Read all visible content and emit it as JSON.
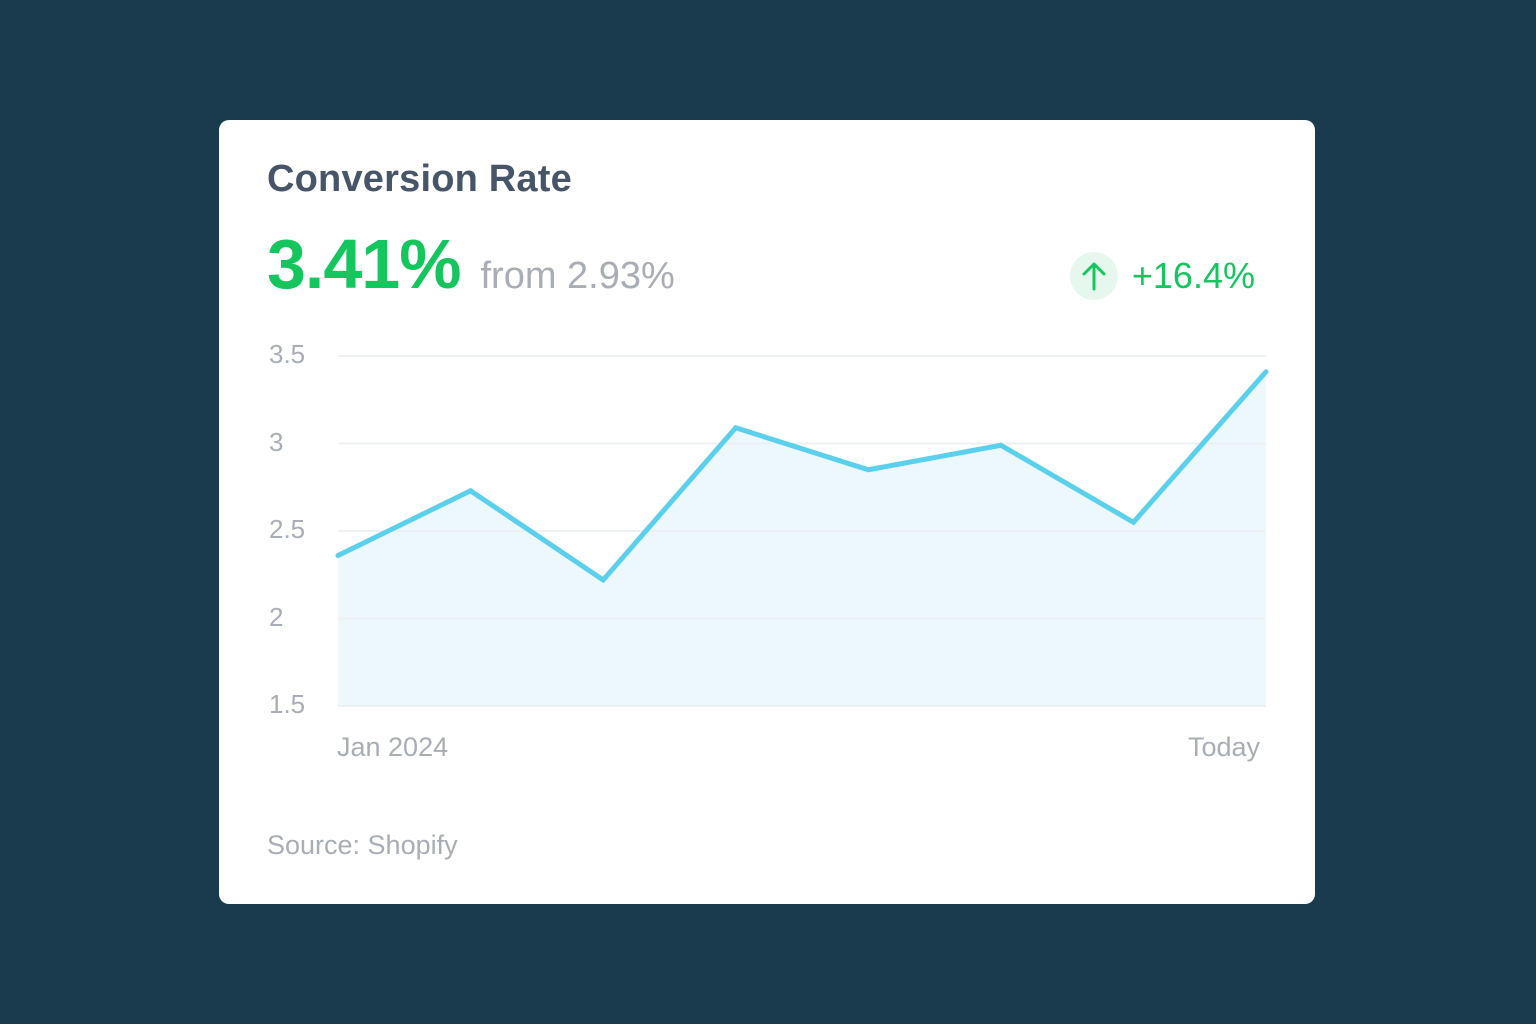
{
  "card": {
    "title": "Conversion Rate",
    "value": "3.41%",
    "from_text": "from 2.93%",
    "change": {
      "icon": "arrow-up-icon",
      "value": "+16.4%",
      "direction": "up"
    },
    "source": "Source: Shopify"
  },
  "colors": {
    "background": "#1a3a4d",
    "card": "#ffffff",
    "title": "#475569",
    "positive": "#15c55e",
    "positive_bg": "#e6f8ee",
    "muted": "#a8adb6",
    "line": "#5bd0ec",
    "area": "#ecf8fb",
    "grid": "#eef1f4"
  },
  "chart_data": {
    "type": "area",
    "title": "Conversion Rate",
    "xlabel": "",
    "ylabel": "",
    "x_tick_labels": [
      "Jan 2024",
      "Today"
    ],
    "y_ticks": [
      "3.5",
      "3",
      "2.5",
      "2",
      "1.5"
    ],
    "ylim": [
      1.5,
      3.5
    ],
    "grid": true,
    "legend": null,
    "series": [
      {
        "name": "Conversion Rate (%)",
        "values": [
          2.36,
          2.73,
          2.22,
          3.09,
          2.85,
          2.99,
          2.55,
          3.41
        ]
      }
    ],
    "annotations": {
      "current": "3.41%",
      "previous": "2.93%",
      "change": "+16.4%"
    }
  }
}
